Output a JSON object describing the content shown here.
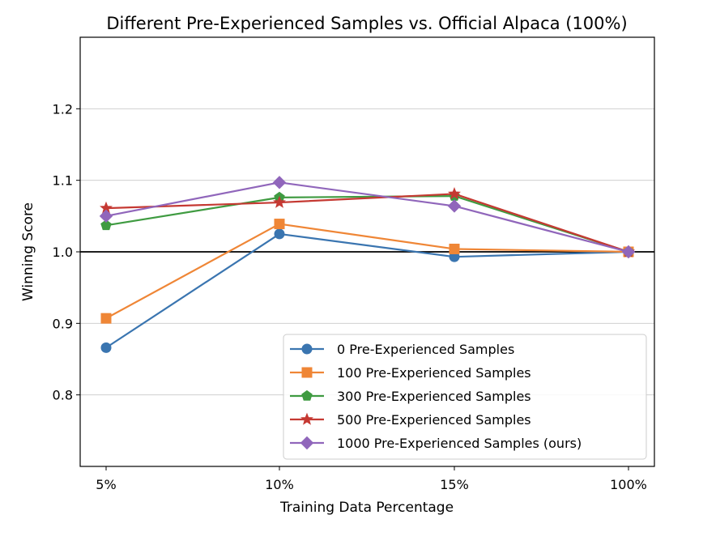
{
  "chart_data": {
    "type": "line",
    "title": "Different Pre-Experienced Samples vs. Official Alpaca (100%)",
    "xlabel": "Training Data Percentage",
    "ylabel": "Winning Score",
    "categories": [
      "5%",
      "10%",
      "15%",
      "100%"
    ],
    "ylim": [
      0.7,
      1.3
    ],
    "yticks": [
      0.8,
      0.9,
      1.0,
      1.1,
      1.2
    ],
    "ytick_labels": [
      "0.8",
      "0.9",
      "1.0",
      "1.1",
      "1.2"
    ],
    "grid": "horizontal",
    "reference_line": 1.0,
    "legend_position": "lower-right",
    "series": [
      {
        "name": "0 Pre-Experienced Samples",
        "color": "#3a75b0",
        "marker": "circle",
        "values": [
          0.866,
          1.025,
          0.993,
          1.0
        ]
      },
      {
        "name": "100 Pre-Experienced Samples",
        "color": "#ef8636",
        "marker": "square",
        "values": [
          0.907,
          1.039,
          1.004,
          1.0
        ]
      },
      {
        "name": "300 Pre-Experienced Samples",
        "color": "#3f9b41",
        "marker": "pentagon",
        "values": [
          1.037,
          1.076,
          1.078,
          1.0
        ]
      },
      {
        "name": "500 Pre-Experienced Samples",
        "color": "#c53932",
        "marker": "star",
        "values": [
          1.061,
          1.069,
          1.081,
          1.0
        ]
      },
      {
        "name": "1000 Pre-Experienced Samples (ours)",
        "color": "#9066bb",
        "marker": "diamond",
        "values": [
          1.05,
          1.097,
          1.064,
          1.0
        ]
      }
    ]
  }
}
